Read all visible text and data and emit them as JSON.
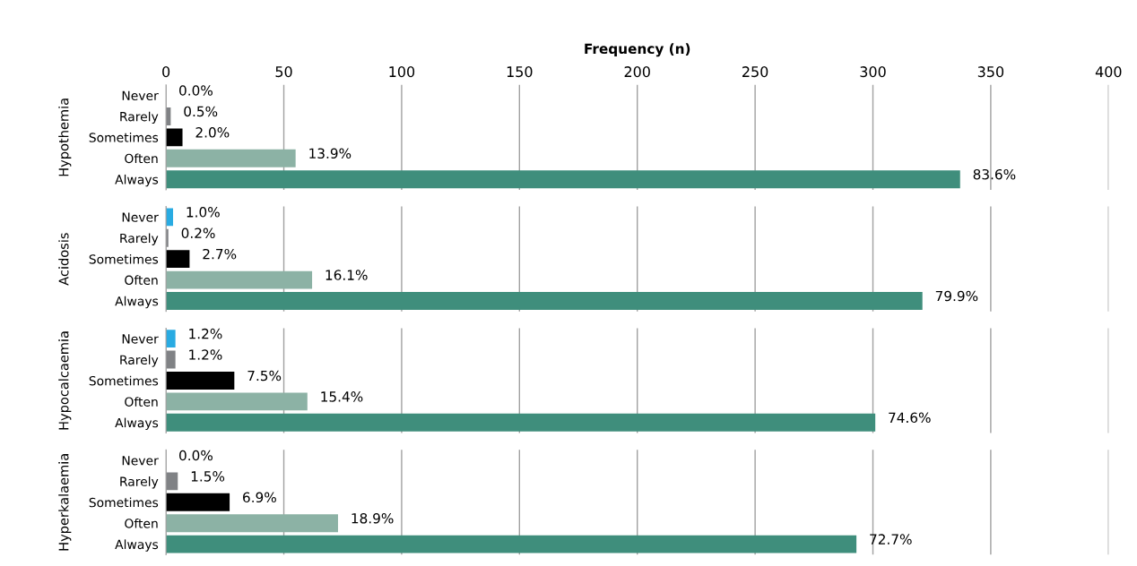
{
  "chart_data": [
    {
      "type": "bar",
      "orientation": "horizontal",
      "xlabel": "Frequency (n)",
      "ylabel": "Hypothemia",
      "categories": [
        "Never",
        "Rarely",
        "Sometimes",
        "Often",
        "Always"
      ],
      "values": [
        0,
        2,
        7,
        55,
        337
      ],
      "colors": [
        "#29abe2",
        "#808285",
        "#000000",
        "#8cb2a5",
        "#3f8e7c"
      ],
      "annotations": [
        {
          "text": "0.0%",
          "x": 0,
          "y": "Never"
        },
        {
          "text": "0.5%",
          "x": 2,
          "y": "Rarely"
        },
        {
          "text": "2.0%",
          "x": 7,
          "y": "Sometimes"
        },
        {
          "text": "13.9%",
          "x": 55,
          "y": "Often"
        },
        {
          "text": "83.6%",
          "x": 337,
          "y": "Always"
        }
      ],
      "xlim": [
        0,
        400
      ],
      "xticks": [
        0,
        50,
        100,
        150,
        200,
        250,
        300,
        350,
        400
      ],
      "grid": "x"
    },
    {
      "type": "bar",
      "orientation": "horizontal",
      "ylabel": "Acidosis",
      "categories": [
        "Never",
        "Rarely",
        "Sometimes",
        "Often",
        "Always"
      ],
      "values": [
        3,
        1,
        10,
        62,
        321
      ],
      "colors": [
        "#29abe2",
        "#808285",
        "#000000",
        "#8cb2a5",
        "#3f8e7c"
      ],
      "annotations": [
        {
          "text": "1.0%",
          "x": 3,
          "y": "Never"
        },
        {
          "text": "0.2%",
          "x": 1,
          "y": "Rarely"
        },
        {
          "text": "2.7%",
          "x": 10,
          "y": "Sometimes"
        },
        {
          "text": "16.1%",
          "x": 62,
          "y": "Often"
        },
        {
          "text": "79.9%",
          "x": 321,
          "y": "Always"
        }
      ],
      "xlim": [
        0,
        400
      ],
      "xticks": [
        0,
        50,
        100,
        150,
        200,
        250,
        300,
        350,
        400
      ],
      "grid": "x",
      "tick_labels": "y"
    },
    {
      "type": "bar",
      "orientation": "horizontal",
      "ylabel": "Hypocalcaemia",
      "categories": [
        "Never",
        "Rarely",
        "Sometimes",
        "Often",
        "Always"
      ],
      "values": [
        4,
        4,
        29,
        60,
        301
      ],
      "colors": [
        "#29abe2",
        "#808285",
        "#000000",
        "#8cb2a5",
        "#3f8e7c"
      ],
      "annotations": [
        {
          "text": "1.2%",
          "x": 4,
          "y": "Never"
        },
        {
          "text": "1.2%",
          "x": 4,
          "y": "Rarely"
        },
        {
          "text": "7.5%",
          "x": 29,
          "y": "Sometimes"
        },
        {
          "text": "15.4%",
          "x": 60,
          "y": "Often"
        },
        {
          "text": "74.6%",
          "x": 301,
          "y": "Always"
        }
      ],
      "xlim": [
        0,
        400
      ],
      "xticks": [
        0,
        50,
        100,
        150,
        200,
        250,
        300,
        350,
        400
      ],
      "grid": "x",
      "tick_labels": "y"
    },
    {
      "type": "bar",
      "orientation": "horizontal",
      "ylabel": "Hyperkalaemia",
      "categories": [
        "Never",
        "Rarely",
        "Sometimes",
        "Often",
        "Always"
      ],
      "values": [
        0,
        5,
        27,
        73,
        293
      ],
      "colors": [
        "#29abe2",
        "#808285",
        "#000000",
        "#8cb2a5",
        "#3f8e7c"
      ],
      "annotations": [
        {
          "text": "0.0%",
          "x": 0,
          "y": "Never"
        },
        {
          "text": "1.5%",
          "x": 5,
          "y": "Rarely"
        },
        {
          "text": "6.9%",
          "x": 27,
          "y": "Sometimes"
        },
        {
          "text": "18.9%",
          "x": 73,
          "y": "Often"
        },
        {
          "text": "72.7%",
          "x": 293,
          "y": "Always"
        }
      ],
      "xlim": [
        0,
        400
      ],
      "xticks": [
        0,
        50,
        100,
        150,
        200,
        250,
        300,
        350,
        400
      ],
      "grid": "x",
      "tick_labels": "y"
    }
  ]
}
